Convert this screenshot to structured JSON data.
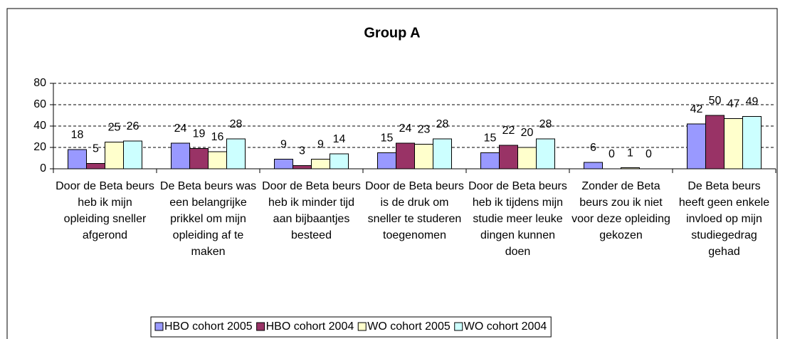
{
  "chart_data": {
    "type": "bar",
    "title": "Group A",
    "categories": [
      "Door de Beta beurs heb ik mijn opleiding sneller afgerond",
      "De Beta beurs was een belangrijke prikkel om mijn opleiding af te maken",
      "Door de Beta beurs heb ik minder tijd aan bijbaantjes besteed",
      "Door de Beta beurs is de druk om sneller te studeren toegenomen",
      "Door de Beta beurs heb ik tijdens mijn studie meer leuke dingen kunnen doen",
      "Zonder de Beta beurs zou ik niet voor deze opleiding gekozen",
      "De Beta beurs heeft geen enkele invloed op mijn studiegedrag gehad"
    ],
    "series": [
      {
        "name": "HBO cohort 2005",
        "color": "#9999ff",
        "values": [
          18,
          24,
          9,
          15,
          15,
          6,
          42
        ]
      },
      {
        "name": "HBO cohort 2004",
        "color": "#993366",
        "values": [
          5,
          19,
          3,
          24,
          22,
          0,
          50
        ]
      },
      {
        "name": "WO cohort 2005",
        "color": "#ffffcc",
        "values": [
          25,
          16,
          9,
          23,
          20,
          1,
          47
        ]
      },
      {
        "name": "WO cohort 2004",
        "color": "#ccffff",
        "values": [
          26,
          28,
          14,
          28,
          28,
          0,
          49
        ]
      }
    ],
    "ylim": [
      0,
      80
    ],
    "yticks": [
      0,
      20,
      40,
      60,
      80
    ],
    "grid": true,
    "legend": "bottom"
  }
}
